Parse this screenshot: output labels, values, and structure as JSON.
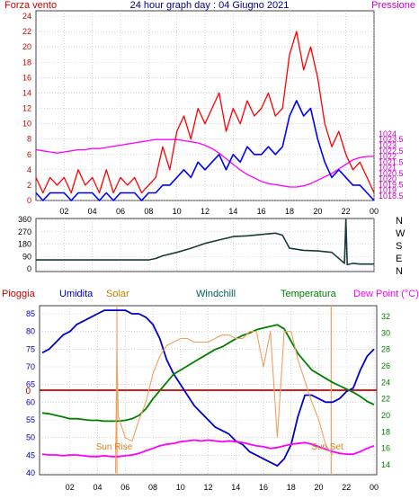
{
  "colors": {
    "wind_gust": "#ff0000",
    "wind_avg": "#0000ff",
    "pressure": "#ff00ff",
    "wind_dir": "#1a3a3a",
    "humidity": "#0000cc",
    "solar": "#f0a060",
    "temperature": "#008000",
    "dewpoint": "#ff00ff",
    "rain": "#cc0000",
    "grid": "#b8b8b8"
  },
  "chart_data": [
    {
      "type": "line",
      "title": "24 hour graph day : 04 Giugno 2021",
      "left_label": "Forza vento",
      "right_label": "Pressione",
      "x_ticks": [
        "02",
        "04",
        "06",
        "08",
        "10",
        "12",
        "14",
        "16",
        "18",
        "20",
        "22",
        "00"
      ],
      "x_range_hours": [
        0,
        24
      ],
      "ylim_left": [
        0,
        24
      ],
      "yticks_left": [
        "0",
        "2",
        "4",
        "6",
        "8",
        "10",
        "12",
        "14",
        "16",
        "18",
        "20",
        "22",
        "24"
      ],
      "ylim_right": [
        1018.5,
        1034.5
      ],
      "yticks_right": [
        "1018.5",
        "1019",
        "1019.5",
        "1020",
        "1020.5",
        "1021",
        "1021.5",
        "1022",
        "1022.5",
        "1023",
        "1023.5",
        "1024"
      ],
      "grid": true,
      "series": [
        {
          "key": "pressure",
          "axis": "right",
          "x": [
            0,
            0.5,
            1,
            1.5,
            2,
            2.5,
            3,
            3.5,
            4,
            4.5,
            5,
            5.5,
            6,
            6.5,
            7,
            7.5,
            8,
            8.5,
            9,
            9.5,
            10,
            10.5,
            11,
            11.5,
            12,
            12.5,
            13,
            13.5,
            14,
            14.5,
            15,
            15.5,
            16,
            16.5,
            17,
            17.5,
            18,
            18.5,
            19,
            19.5,
            20,
            20.5,
            21,
            21.5,
            22,
            22.5,
            23,
            23.5,
            24
          ],
          "y": [
            1022.6,
            1022.5,
            1022.4,
            1022.3,
            1022.4,
            1022.5,
            1022.6,
            1022.6,
            1022.7,
            1022.7,
            1022.8,
            1022.9,
            1023.0,
            1023.1,
            1023.2,
            1023.3,
            1023.4,
            1023.5,
            1023.5,
            1023.5,
            1023.5,
            1023.4,
            1023.3,
            1023.2,
            1023.0,
            1022.7,
            1022.3,
            1021.8,
            1021.3,
            1020.8,
            1020.4,
            1020.1,
            1019.8,
            1019.6,
            1019.5,
            1019.4,
            1019.3,
            1019.3,
            1019.4,
            1019.6,
            1019.9,
            1020.2,
            1020.5,
            1020.9,
            1021.3,
            1021.7,
            1021.9,
            1022.0,
            1022.0
          ]
        },
        {
          "key": "wind_gust",
          "axis": "left",
          "x": [
            0,
            0.5,
            1,
            1.5,
            2,
            2.5,
            3,
            3.5,
            4,
            4.5,
            5,
            5.5,
            6,
            6.5,
            7,
            7.5,
            8,
            8.5,
            9,
            9.5,
            10,
            10.5,
            11,
            11.5,
            12,
            12.5,
            13,
            13.5,
            14,
            14.5,
            15,
            15.5,
            16,
            16.5,
            17,
            17.5,
            18,
            18.5,
            19,
            19.5,
            20,
            20.5,
            21,
            21.5,
            22,
            22.5,
            23,
            23.5,
            24
          ],
          "y": [
            3,
            1,
            3,
            2,
            3,
            1,
            4,
            2,
            3,
            1,
            4,
            1,
            3,
            2,
            3,
            1,
            2,
            3,
            7,
            4,
            9,
            11,
            8,
            12,
            10,
            12,
            14,
            9,
            12,
            10,
            13,
            11,
            12,
            14,
            11,
            12,
            19,
            22,
            17,
            20,
            16,
            10,
            7,
            9,
            6,
            4,
            5,
            3,
            1
          ]
        },
        {
          "key": "wind_avg",
          "axis": "left",
          "x": [
            0,
            0.5,
            1,
            1.5,
            2,
            2.5,
            3,
            3.5,
            4,
            4.5,
            5,
            5.5,
            6,
            6.5,
            7,
            7.5,
            8,
            8.5,
            9,
            9.5,
            10,
            10.5,
            11,
            11.5,
            12,
            12.5,
            13,
            13.5,
            14,
            14.5,
            15,
            15.5,
            16,
            16.5,
            17,
            17.5,
            18,
            18.5,
            19,
            19.5,
            20,
            20.5,
            21,
            21.5,
            22,
            22.5,
            23,
            23.5,
            24
          ],
          "y": [
            1,
            0,
            1,
            1,
            1,
            0,
            1,
            1,
            1,
            0,
            1,
            0,
            1,
            1,
            1,
            0,
            1,
            1,
            2,
            2,
            3,
            4,
            3,
            5,
            4,
            5,
            6,
            4,
            6,
            5,
            7,
            6,
            6,
            7,
            6,
            7,
            11,
            13,
            11,
            12,
            8,
            5,
            3,
            4,
            3,
            2,
            2,
            1,
            0
          ]
        }
      ]
    },
    {
      "type": "line",
      "y_ticks": [
        "0",
        "90",
        "180",
        "270",
        "360"
      ],
      "ylim": [
        0,
        360
      ],
      "direction_labels": [
        "N",
        "W",
        "S",
        "E",
        "N"
      ],
      "grid": true,
      "series": [
        {
          "key": "wind_dir",
          "x": [
            0,
            1,
            2,
            3,
            4,
            5,
            6,
            7,
            8,
            8.5,
            9,
            10,
            11,
            12,
            13,
            14,
            15,
            16,
            17,
            17.5,
            18,
            19,
            20,
            21,
            21.9,
            22,
            22.1,
            22.5,
            23,
            24
          ],
          "y": [
            65,
            65,
            65,
            65,
            65,
            65,
            65,
            65,
            65,
            75,
            95,
            120,
            150,
            185,
            210,
            235,
            240,
            250,
            260,
            245,
            150,
            135,
            130,
            120,
            40,
            360,
            30,
            40,
            35,
            35
          ]
        }
      ]
    },
    {
      "type": "line",
      "legend": [
        "Pioggia",
        "Umidita",
        "Solar",
        "Windchill",
        "Temperatura",
        "Dew Point (°C)"
      ],
      "x_ticks": [
        "02",
        "04",
        "06",
        "08",
        "10",
        "12",
        "14",
        "16",
        "18",
        "20",
        "22",
        "00"
      ],
      "ylim_left": [
        40,
        87
      ],
      "yticks_left": [
        "40",
        "45",
        "50",
        "55",
        "60",
        "65",
        "70",
        "75",
        "80",
        "85"
      ],
      "ylim_right": [
        13,
        33
      ],
      "yticks_right": [
        "14",
        "16",
        "18",
        "20",
        "22",
        "24",
        "26",
        "28",
        "30",
        "32"
      ],
      "rain_value": "0",
      "annotations": [
        "Sun Rise",
        "Sun Set"
      ],
      "grid": true,
      "series": [
        {
          "key": "humidity",
          "axis": "left",
          "x": [
            0,
            0.5,
            1,
            1.5,
            2,
            2.5,
            3,
            3.5,
            4,
            4.5,
            5,
            5.5,
            6,
            6.5,
            7,
            7.5,
            8,
            8.5,
            9,
            9.5,
            10,
            10.5,
            11,
            11.5,
            12,
            12.5,
            13,
            13.5,
            14,
            14.5,
            15,
            15.5,
            16,
            16.5,
            17,
            17.5,
            18,
            18.5,
            19,
            19.5,
            20,
            20.5,
            21,
            21.5,
            22,
            22.5,
            23,
            23.5,
            24
          ],
          "y": [
            74,
            75,
            77,
            79,
            80,
            82,
            83,
            84,
            85,
            86,
            86,
            86,
            86,
            85,
            85,
            84,
            82,
            78,
            72,
            68,
            65,
            62,
            59,
            57,
            55,
            53,
            52,
            51,
            49,
            48,
            46,
            45,
            44,
            43,
            42,
            44,
            48,
            56,
            62,
            62,
            61,
            60,
            60,
            61,
            63,
            64,
            69,
            73,
            75
          ]
        },
        {
          "key": "temperature",
          "axis": "right",
          "x": [
            0,
            0.5,
            1,
            1.5,
            2,
            2.5,
            3,
            3.5,
            4,
            4.5,
            5,
            5.5,
            6,
            6.5,
            7,
            7.5,
            8,
            8.5,
            9,
            9.5,
            10,
            10.5,
            11,
            11.5,
            12,
            12.5,
            13,
            13.5,
            14,
            14.5,
            15,
            15.5,
            16,
            16.5,
            17,
            17.5,
            18,
            18.5,
            19,
            19.5,
            20,
            20.5,
            21,
            21.5,
            22,
            22.5,
            23,
            23.5,
            24
          ],
          "y": [
            20.3,
            20.2,
            20.0,
            19.8,
            19.6,
            19.6,
            19.5,
            19.4,
            19.4,
            19.3,
            19.3,
            19.3,
            19.4,
            19.6,
            20.0,
            20.8,
            22.0,
            23.0,
            24.0,
            25.0,
            25.5,
            26.0,
            26.5,
            27.0,
            27.5,
            28.0,
            28.3,
            28.8,
            29.3,
            29.7,
            30.0,
            30.4,
            30.6,
            30.8,
            31.0,
            30.5,
            29.0,
            27.5,
            26.5,
            25.5,
            25.0,
            24.5,
            24.0,
            23.6,
            23.2,
            22.8,
            22.3,
            21.7,
            21.3
          ]
        },
        {
          "key": "dewpoint",
          "axis": "right",
          "x": [
            0,
            0.5,
            1,
            1.5,
            2,
            2.5,
            3,
            3.5,
            4,
            4.5,
            5,
            5.5,
            6,
            6.5,
            7,
            7.5,
            8,
            8.5,
            9,
            9.5,
            10,
            10.5,
            11,
            11.5,
            12,
            12.5,
            13,
            13.5,
            14,
            14.5,
            15,
            15.5,
            16,
            16.5,
            17,
            17.5,
            18,
            18.5,
            19,
            19.5,
            20,
            20.5,
            21,
            21.5,
            22,
            22.5,
            23,
            23.5,
            24
          ],
          "y": [
            15.3,
            15.2,
            15.2,
            15.1,
            15.2,
            15.2,
            15.1,
            15.0,
            15.0,
            15.1,
            15.0,
            15.0,
            15.1,
            15.2,
            15.4,
            15.7,
            16.0,
            16.3,
            16.5,
            16.6,
            16.8,
            16.9,
            17.0,
            16.9,
            17.0,
            16.9,
            16.8,
            16.9,
            16.8,
            16.7,
            16.5,
            16.3,
            16.2,
            16.0,
            16.1,
            16.3,
            16.5,
            16.6,
            16.7,
            16.5,
            16.2,
            15.9,
            15.6,
            15.4,
            15.3,
            15.3,
            15.6,
            16.0,
            16.3
          ]
        },
        {
          "key": "solar",
          "axis": "left",
          "x": [
            5.3,
            5.4,
            5.5,
            6,
            6.5,
            7,
            7.5,
            8,
            8.5,
            9,
            9.5,
            10,
            10.5,
            11,
            11.5,
            12,
            12.5,
            13,
            13.5,
            14,
            14.5,
            15,
            15.5,
            16,
            16.5,
            17,
            17.5,
            18,
            18.5,
            19,
            19.5,
            20,
            20.5,
            21
          ],
          "y": [
            40,
            75,
            56,
            50,
            49,
            55,
            60,
            68,
            73,
            76,
            77,
            78,
            78,
            77,
            77,
            77,
            78,
            79,
            79,
            78,
            78,
            80,
            80,
            70,
            80,
            50,
            80,
            80,
            72,
            66,
            60,
            55,
            48,
            45
          ]
        }
      ]
    }
  ]
}
